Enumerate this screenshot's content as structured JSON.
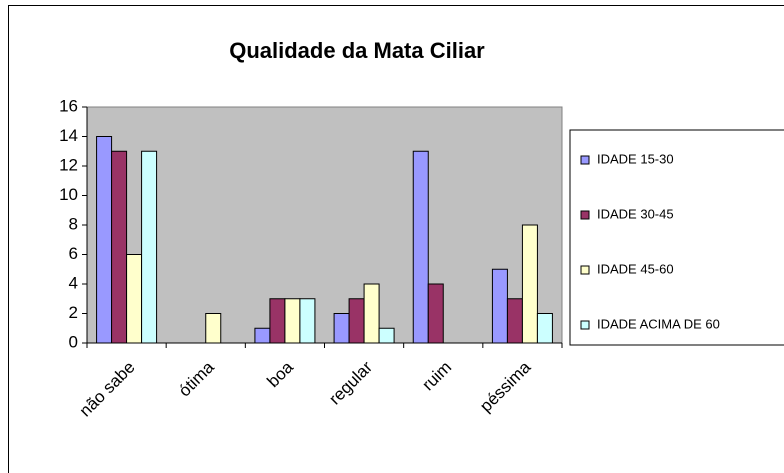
{
  "chart_data": {
    "type": "bar",
    "title": "Qualidade da Mata Ciliar",
    "categories": [
      "não sabe",
      "ótima",
      "boa",
      "regular",
      "ruim",
      "péssima"
    ],
    "series": [
      {
        "name": "IDADE 15-30",
        "color": "#9999ff",
        "values": [
          14,
          0,
          1,
          2,
          13,
          5
        ]
      },
      {
        "name": "IDADE 30-45",
        "color": "#993366",
        "values": [
          13,
          0,
          3,
          3,
          4,
          3
        ]
      },
      {
        "name": "IDADE 45-60",
        "color": "#ffffcc",
        "values": [
          6,
          2,
          3,
          4,
          0,
          8
        ]
      },
      {
        "name": "IDADE ACIMA DE 60",
        "color": "#ccffff",
        "values": [
          13,
          0,
          3,
          1,
          0,
          2
        ]
      }
    ],
    "ylim": [
      0,
      16
    ],
    "yticks": [
      0,
      2,
      4,
      6,
      8,
      10,
      12,
      14,
      16
    ],
    "grid": false,
    "plot_background": "#c0c0c0",
    "legend": "right"
  }
}
